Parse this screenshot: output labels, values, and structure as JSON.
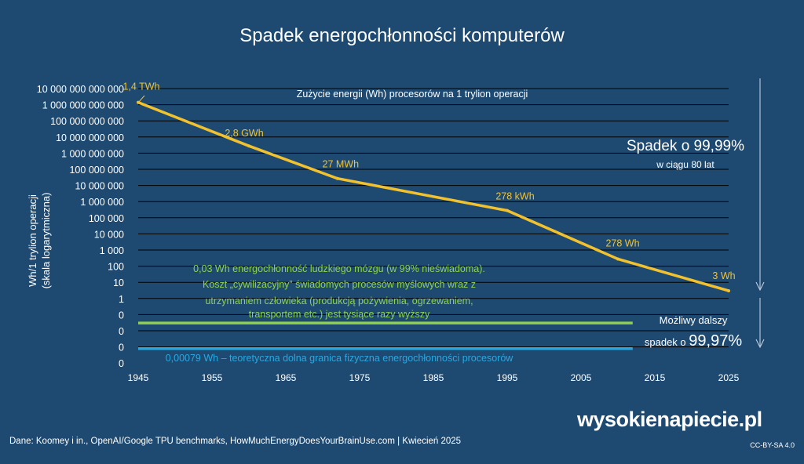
{
  "chart_data": {
    "type": "line",
    "title": "Spadek energochłonności komputerów",
    "ylabel_line1": "Wh/1 trylion operacji",
    "ylabel_line2": "(skala logarytmiczna)",
    "series_label": "Zużycie energii (Wh) procesorów na 1 trylion operacji",
    "x_ticks": [
      "1945",
      "1955",
      "1965",
      "1975",
      "1985",
      "1995",
      "2005",
      "2015",
      "2025"
    ],
    "y_ticks": [
      "10 000 000 000 000",
      "1 000 000 000 000",
      "100 000 000 000",
      "10 000 000 000",
      "1 000 000 000",
      "100 000 000",
      "10 000 000",
      "1 000 000",
      "100 000",
      "10 000",
      "1 000",
      "100",
      "10",
      "1",
      "0",
      "0",
      "0",
      "0"
    ],
    "xlim": [
      1945,
      2025
    ],
    "series": [
      {
        "x": [
          1945,
          1960,
          1972,
          1995,
          2010,
          2025
        ],
        "y": [
          1400000000000,
          2800000000,
          27000000,
          278000,
          278,
          3
        ],
        "labels": [
          "1,4 TWh",
          "2,8 GWh",
          "27 MWh",
          "278 kWh",
          "278 Wh",
          "3 Wh"
        ]
      }
    ],
    "reference_lines": [
      {
        "value": 0.03,
        "color": "#8fd14f",
        "x_end": 2012,
        "text": [
          "0,03 Wh energochłonność ludzkiego mózgu (w 99% nieświadoma).",
          "Koszt „cywilizacyjny” świadomych procesów myślowych wraz z",
          "utrzymaniem człowieka (produkcją pożywienia, ogrzewaniem,",
          "transportem etc.) jest tysiące razy wyższy"
        ]
      },
      {
        "value": 0.00079,
        "color": "#29a8e0",
        "x_end": 2012,
        "text": [
          "0,00079 Wh – teoretyczna dolna granica fizyczna energochłonności procesorów"
        ]
      }
    ],
    "annotations": {
      "drop_big": "Spadek o 99,99%",
      "drop_small": "w ciągu 80 lat",
      "further_line1": "Możliwy dalszy",
      "further_prefix": "spadek o ",
      "further_value": "99,97%"
    },
    "colors": {
      "background": "#1e4a72",
      "line": "#f2c12e",
      "label": "#f2c12e",
      "grid": "#000000",
      "text": "#ffffff"
    }
  },
  "footer": {
    "source": "Dane: Koomey i in., OpenAI/Google TPU benchmarks, HowMuchEnergyDoesYourBrainUse.com   |  Kwiecień 2025",
    "logo": "wysokienapiecie.pl",
    "license": "CC-BY-SA 4.0"
  }
}
